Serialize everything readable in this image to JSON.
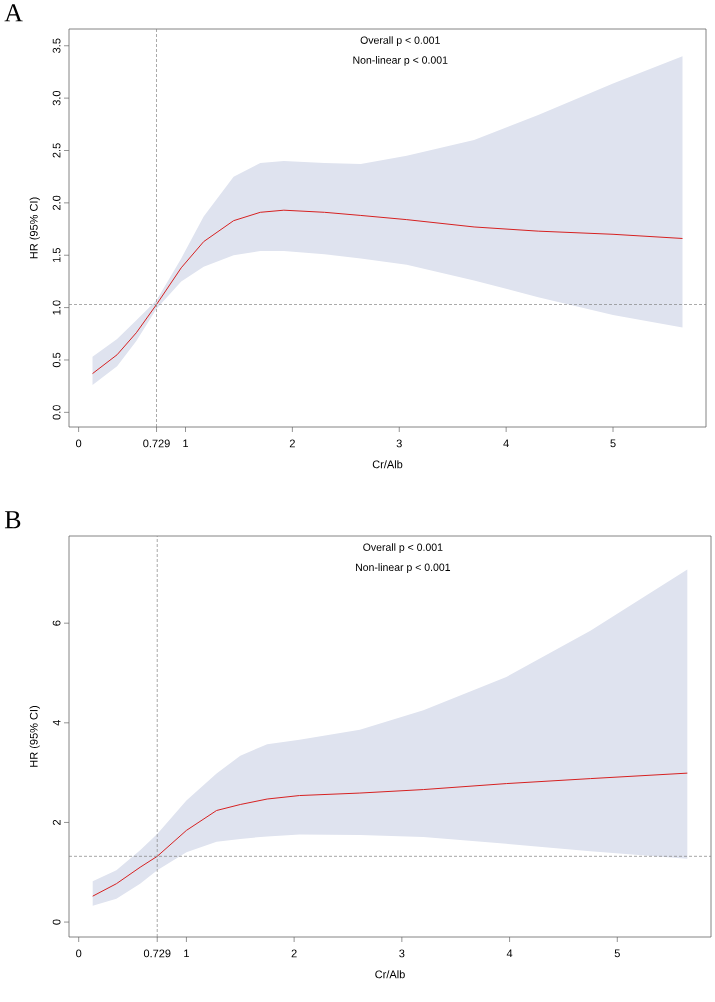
{
  "chart_data": [
    {
      "type": "line",
      "title": "A",
      "xlabel": "Cr/Alb",
      "ylabel": "HR (95% CI)",
      "annotations": [
        "Overall p < 0.001",
        "Non-linear p < 0.001"
      ],
      "x": [
        0.13,
        0.36,
        0.54,
        0.729,
        0.96,
        1.17,
        1.45,
        1.7,
        1.92,
        2.3,
        2.64,
        3.07,
        3.7,
        4.3,
        5.0,
        5.65
      ],
      "series": [
        {
          "color": "#d62020",
          "values": [
            0.37,
            0.55,
            0.76,
            1.03,
            1.38,
            1.63,
            1.83,
            1.91,
            1.93,
            1.91,
            1.88,
            1.84,
            1.77,
            1.73,
            1.7,
            1.66
          ],
          "lower": [
            0.26,
            0.44,
            0.68,
            0.99,
            1.25,
            1.39,
            1.5,
            1.54,
            1.54,
            1.51,
            1.47,
            1.41,
            1.26,
            1.1,
            0.93,
            0.81
          ],
          "upper": [
            0.53,
            0.7,
            0.88,
            1.07,
            1.47,
            1.87,
            2.25,
            2.38,
            2.4,
            2.38,
            2.37,
            2.45,
            2.6,
            2.84,
            3.14,
            3.4
          ]
        }
      ],
      "xlim": [
        -0.09,
        5.87
      ],
      "xticks": [
        0,
        0.729,
        1,
        2,
        3,
        4,
        5
      ],
      "ylim": [
        -0.14,
        3.66
      ],
      "yticks": [
        {
          "value": 0,
          "label": "0.0"
        },
        0.5,
        {
          "value": 1,
          "label": "1.0"
        },
        1.5,
        {
          "value": 2,
          "label": "2.0"
        },
        2.5,
        {
          "value": 3,
          "label": "3.0"
        },
        3.5
      ],
      "ref_lines": [
        {
          "axis": "x",
          "value": 0.729,
          "color": "#808080",
          "line_style": "dashed"
        },
        {
          "axis": "y",
          "value": 1.03,
          "color": "#808080",
          "line_style": "dashed"
        }
      ]
    },
    {
      "type": "line",
      "title": "B",
      "xlabel": "Cr/Alb",
      "ylabel": "HR (95% CI)",
      "annotations": [
        "Overall p < 0.001",
        "Non-linear p < 0.001"
      ],
      "x": [
        0.13,
        0.35,
        0.57,
        0.729,
        1.0,
        1.28,
        1.5,
        1.75,
        2.05,
        2.61,
        3.2,
        3.97,
        4.75,
        5.65
      ],
      "series": [
        {
          "color": "#d62020",
          "values": [
            0.52,
            0.77,
            1.1,
            1.32,
            1.84,
            2.24,
            2.36,
            2.47,
            2.54,
            2.59,
            2.66,
            2.78,
            2.88,
            2.99
          ],
          "lower": [
            0.33,
            0.47,
            0.77,
            1.04,
            1.4,
            1.61,
            1.67,
            1.72,
            1.76,
            1.75,
            1.71,
            1.57,
            1.42,
            1.27
          ],
          "upper": [
            0.82,
            1.04,
            1.44,
            1.77,
            2.44,
            2.98,
            3.34,
            3.57,
            3.66,
            3.86,
            4.25,
            4.92,
            5.85,
            7.08
          ]
        }
      ],
      "xlim": [
        -0.09,
        5.87
      ],
      "xticks": [
        0,
        0.729,
        1,
        2,
        3,
        4,
        5
      ],
      "ylim": [
        -0.3,
        7.75
      ],
      "yticks": [
        0,
        2,
        4,
        6
      ],
      "ref_lines": [
        {
          "axis": "x",
          "value": 0.729,
          "color": "#808080",
          "line_style": "dashed"
        },
        {
          "axis": "y",
          "value": 1.32,
          "color": "#808080",
          "line_style": "dashed"
        }
      ]
    }
  ]
}
